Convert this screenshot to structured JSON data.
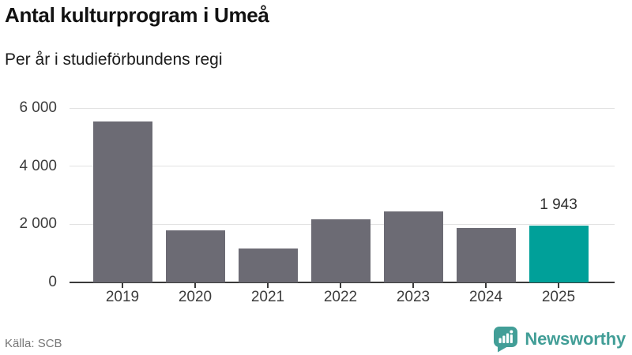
{
  "header": {
    "title": "Antal kulturprogram i Umeå",
    "subtitle": "Per år i studieförbundens regi"
  },
  "chart_data": {
    "type": "bar",
    "title": "Antal kulturprogram i Umeå",
    "subtitle": "Per år i studieförbundens regi",
    "xlabel": "",
    "ylabel": "",
    "categories": [
      "2019",
      "2020",
      "2021",
      "2022",
      "2023",
      "2024",
      "2025"
    ],
    "values": [
      5550,
      1790,
      1165,
      2165,
      2450,
      1870,
      1943
    ],
    "highlight_index": 6,
    "data_labels": {
      "6": "1 943"
    },
    "ylim": [
      0,
      6000
    ],
    "yticks": [
      {
        "value": 0,
        "label": "0"
      },
      {
        "value": 2000,
        "label": "2 000"
      },
      {
        "value": 4000,
        "label": "4 000"
      },
      {
        "value": 6000,
        "label": "6 000"
      }
    ],
    "grid": true,
    "legend": false,
    "bar_color": "#6c6b74",
    "highlight_color": "#00a099"
  },
  "footer": {
    "source": "Källa: SCB",
    "brand": "Newsworthy"
  },
  "colors": {
    "bar_gray": "#6c6b74",
    "bar_teal": "#00a099",
    "logo_teal": "#429e97",
    "gridline": "#e3e3e3",
    "axis": "#3b3b3b"
  }
}
